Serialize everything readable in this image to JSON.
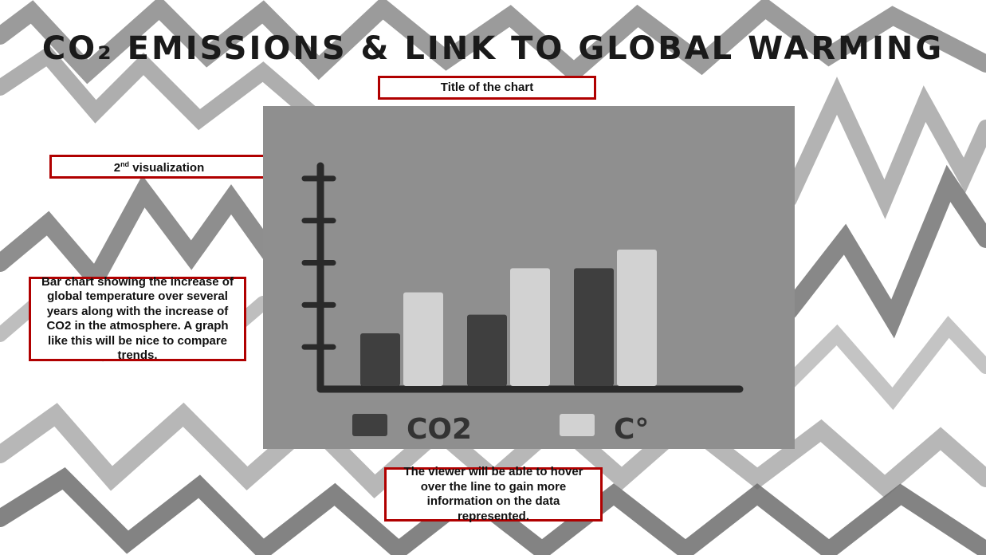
{
  "page": {
    "sketch_title": "CO₂ EMISSIONS & LINK TO GLOBAL WARMING",
    "colors": {
      "note_border": "#b00000",
      "panel": "#8f8f8f",
      "zigzag_dark": "#6e6e6e",
      "zigzag_light": "#bdbdbd"
    }
  },
  "annotations": {
    "title_note": "Title of the chart",
    "vis_note_prefix": "2",
    "vis_note_sup": "nd",
    "vis_note_suffix": " visualization",
    "description_note": "Bar chart showing the increase of global temperature over several years along with the increase of CO2 in the atmosphere. A graph like this will be nice to compare trends.",
    "hover_note": "The viewer will be able to hover over the line to gain more information on the data represented."
  },
  "chart_data": {
    "type": "bar",
    "categories": [
      "",
      "",
      ""
    ],
    "series": [
      {
        "name": "CO2",
        "values": [
          3,
          4,
          6.5
        ],
        "color": "#3f3f3f"
      },
      {
        "name": "C°",
        "values": [
          5.2,
          6.5,
          7.5
        ],
        "color": "#d2d2d2"
      }
    ],
    "ylim": [
      0,
      12
    ],
    "ticks": 5,
    "legend_position": "bottom"
  }
}
